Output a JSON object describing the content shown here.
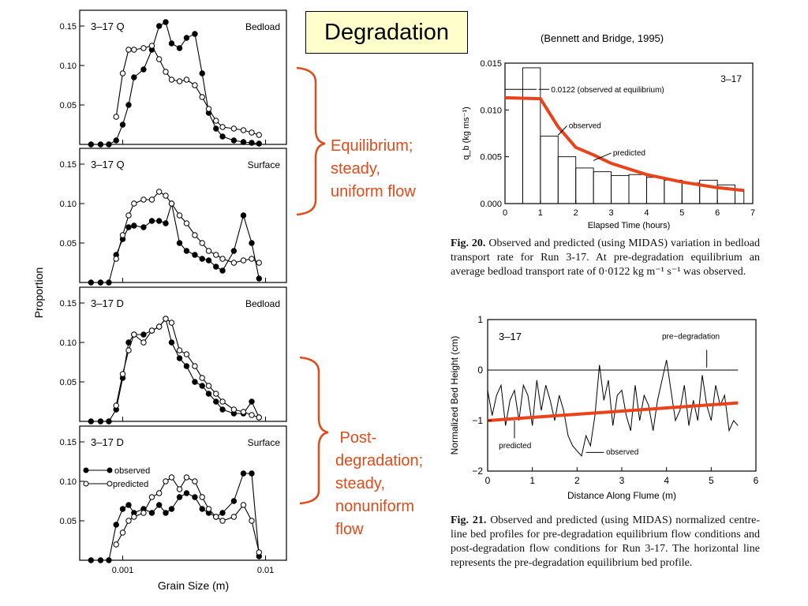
{
  "slide": {
    "title": "Degradation",
    "citation": "(Bennett and Bridge, 1995)",
    "annotation_equilibrium": "Equilibrium;\nsteady,\nuniform flow",
    "annotation_post": " Post-\ndegradation;\nsteady,\nnonuniform\nflow",
    "colors": {
      "annotation": "#e04b1a",
      "title_bg": "#ffffcc",
      "prediction_line": "#e8431b"
    }
  },
  "left_figure": {
    "ylabel": "Proportion",
    "xlabel": "Grain Size (m)",
    "x_ticks": [
      "0.001",
      "0.01"
    ],
    "y_ticks": [
      "0.15",
      "0.10",
      "0.05"
    ],
    "legend": {
      "observed": "observed",
      "predicted": "predicted"
    }
  },
  "fig20": {
    "caption_bold": "Fig. 20.",
    "caption_text": " Observed and predicted (using MIDAS) variation in bedload transport rate for Run 3-17. At pre-degradation equilibrium an average bedload transport rate of 0·0122 kg m⁻¹ s⁻¹ was observed."
  },
  "fig21": {
    "caption_bold": "Fig. 21.",
    "caption_text": " Observed and predicted (using MIDAS) normalized centre-line bed profiles for pre-degradation equilibrium flow conditions and post-degradation flow conditions for Run 3-17. The horizontal line represents the pre-degradation equilibrium bed profile."
  },
  "chart_data": [
    {
      "type": "line",
      "panel_label": "3–17 Q",
      "panel_kind": "Bedload",
      "x_scale": "log",
      "xlim": [
        0.0005,
        0.014
      ],
      "ylim": [
        0,
        0.17
      ],
      "series": [
        {
          "name": "observed",
          "marker": "filled",
          "x": [
            0.0006,
            0.0007,
            0.0008,
            0.0009,
            0.001,
            0.0011,
            0.0012,
            0.0014,
            0.0016,
            0.0018,
            0.002,
            0.0022,
            0.0025,
            0.0028,
            0.0032,
            0.0036,
            0.004,
            0.0045,
            0.005,
            0.006,
            0.007,
            0.008,
            0.009
          ],
          "y": [
            0,
            0,
            0,
            0.005,
            0.025,
            0.05,
            0.085,
            0.095,
            0.12,
            0.15,
            0.155,
            0.128,
            0.122,
            0.135,
            0.14,
            0.09,
            0.04,
            0.02,
            0.01,
            0.005,
            0.003,
            0.002,
            0.001
          ]
        },
        {
          "name": "predicted",
          "marker": "open",
          "x": [
            0.0009,
            0.001,
            0.0011,
            0.0012,
            0.0014,
            0.0016,
            0.0018,
            0.002,
            0.0022,
            0.0025,
            0.0028,
            0.0032,
            0.0036,
            0.004,
            0.0045,
            0.005,
            0.006,
            0.007,
            0.008,
            0.009
          ],
          "y": [
            0.035,
            0.09,
            0.12,
            0.12,
            0.122,
            0.125,
            0.108,
            0.092,
            0.082,
            0.08,
            0.082,
            0.075,
            0.06,
            0.045,
            0.03,
            0.022,
            0.02,
            0.018,
            0.015,
            0.012
          ]
        }
      ]
    },
    {
      "type": "line",
      "panel_label": "3–17 Q",
      "panel_kind": "Surface",
      "x_scale": "log",
      "xlim": [
        0.0005,
        0.014
      ],
      "ylim": [
        0,
        0.17
      ],
      "series": [
        {
          "name": "observed",
          "marker": "filled",
          "x": [
            0.0006,
            0.0007,
            0.0008,
            0.0009,
            0.001,
            0.0011,
            0.0012,
            0.0014,
            0.0016,
            0.0018,
            0.002,
            0.0022,
            0.0025,
            0.0028,
            0.0032,
            0.0036,
            0.004,
            0.0045,
            0.005,
            0.006,
            0.007,
            0.008,
            0.009
          ],
          "y": [
            0,
            0,
            0,
            0.035,
            0.055,
            0.07,
            0.072,
            0.07,
            0.078,
            0.078,
            0.075,
            0.1,
            0.05,
            0.04,
            0.035,
            0.03,
            0.028,
            0.02,
            0.015,
            0.04,
            0.085,
            0.05,
            0.005
          ]
        },
        {
          "name": "predicted",
          "marker": "open",
          "x": [
            0.0009,
            0.001,
            0.0011,
            0.0012,
            0.0014,
            0.0016,
            0.0018,
            0.002,
            0.0022,
            0.0025,
            0.0028,
            0.0032,
            0.0036,
            0.004,
            0.0045,
            0.005,
            0.006,
            0.007,
            0.008,
            0.009
          ],
          "y": [
            0.03,
            0.06,
            0.085,
            0.1,
            0.105,
            0.105,
            0.115,
            0.11,
            0.1,
            0.085,
            0.075,
            0.06,
            0.05,
            0.04,
            0.035,
            0.03,
            0.025,
            0.028,
            0.03,
            0.025
          ]
        }
      ]
    },
    {
      "type": "line",
      "panel_label": "3–17 D",
      "panel_kind": "Bedload",
      "x_scale": "log",
      "xlim": [
        0.0005,
        0.014
      ],
      "ylim": [
        0,
        0.17
      ],
      "series": [
        {
          "name": "observed",
          "marker": "filled",
          "x": [
            0.0006,
            0.0007,
            0.0008,
            0.0009,
            0.001,
            0.0011,
            0.0012,
            0.0014,
            0.0016,
            0.0018,
            0.002,
            0.0022,
            0.0025,
            0.0028,
            0.0032,
            0.0036,
            0.004,
            0.0045,
            0.005,
            0.006,
            0.007,
            0.008,
            0.009
          ],
          "y": [
            0,
            0,
            0,
            0.015,
            0.055,
            0.1,
            0.11,
            0.11,
            0.115,
            0.12,
            0.13,
            0.1,
            0.08,
            0.07,
            0.05,
            0.045,
            0.035,
            0.025,
            0.015,
            0.01,
            0.01,
            0.025,
            0.005
          ]
        },
        {
          "name": "predicted",
          "marker": "open",
          "x": [
            0.0009,
            0.001,
            0.0011,
            0.0012,
            0.0014,
            0.0016,
            0.0018,
            0.002,
            0.0022,
            0.0025,
            0.0028,
            0.0032,
            0.0036,
            0.004,
            0.0045,
            0.005,
            0.006,
            0.007,
            0.008,
            0.009
          ],
          "y": [
            0.02,
            0.06,
            0.09,
            0.11,
            0.1,
            0.115,
            0.12,
            0.13,
            0.125,
            0.09,
            0.085,
            0.07,
            0.055,
            0.045,
            0.035,
            0.025,
            0.015,
            0.012,
            0.008,
            0.005
          ]
        }
      ]
    },
    {
      "type": "line",
      "panel_label": "3–17 D",
      "panel_kind": "Surface",
      "x_scale": "log",
      "xlim": [
        0.0005,
        0.014
      ],
      "ylim": [
        0,
        0.17
      ],
      "series": [
        {
          "name": "observed",
          "marker": "filled",
          "x": [
            0.0006,
            0.0007,
            0.0008,
            0.0009,
            0.001,
            0.0011,
            0.0012,
            0.0014,
            0.0016,
            0.0018,
            0.002,
            0.0022,
            0.0025,
            0.0028,
            0.0032,
            0.0036,
            0.004,
            0.0045,
            0.005,
            0.006,
            0.007,
            0.008,
            0.009
          ],
          "y": [
            0,
            0,
            0,
            0.045,
            0.065,
            0.07,
            0.06,
            0.065,
            0.06,
            0.07,
            0.06,
            0.065,
            0.08,
            0.085,
            0.08,
            0.065,
            0.06,
            0.055,
            0.06,
            0.075,
            0.11,
            0.11,
            0.005
          ]
        },
        {
          "name": "predicted",
          "marker": "open",
          "x": [
            0.0009,
            0.001,
            0.0011,
            0.0012,
            0.0014,
            0.0016,
            0.0018,
            0.002,
            0.0022,
            0.0025,
            0.0028,
            0.0032,
            0.0036,
            0.004,
            0.0045,
            0.005,
            0.006,
            0.007,
            0.008,
            0.009
          ],
          "y": [
            0.02,
            0.035,
            0.05,
            0.055,
            0.06,
            0.08,
            0.085,
            0.1,
            0.105,
            0.09,
            0.105,
            0.1,
            0.08,
            0.065,
            0.055,
            0.05,
            0.055,
            0.07,
            0.05,
            0.01
          ]
        }
      ]
    },
    {
      "type": "bar",
      "figure": "Fig. 20",
      "panel_label": "3–17",
      "xlabel": "Elapsed Time (hours)",
      "ylabel": "q_b (kg ms⁻¹)",
      "xlim": [
        0,
        7
      ],
      "ylim": [
        0,
        0.015
      ],
      "x_ticks": [
        "0",
        "1",
        "2",
        "3",
        "4",
        "5",
        "6",
        "7"
      ],
      "y_ticks": [
        "0.000",
        "0.005",
        "0.010",
        "0.015"
      ],
      "bars": {
        "name": "observed",
        "bin_edges": [
          0,
          0.5,
          1,
          1.5,
          2,
          2.5,
          3,
          3.5,
          4,
          4.5,
          5,
          5.5,
          6,
          6.5,
          6.75
        ],
        "values": [
          0.0112,
          0.0145,
          0.0072,
          0.005,
          0.0038,
          0.0034,
          0.003,
          0.0031,
          0.0028,
          0.0025,
          0.0022,
          0.0025,
          0.002,
          0.0015
        ]
      },
      "predicted": {
        "name": "predicted",
        "x": [
          0,
          1,
          1.5,
          2,
          2.5,
          3,
          4,
          5,
          6,
          6.75
        ],
        "y": [
          0.0113,
          0.0112,
          0.0082,
          0.006,
          0.0052,
          0.0043,
          0.0031,
          0.0023,
          0.0017,
          0.0014
        ]
      },
      "equilibrium_value": 0.0122,
      "annotations": [
        "0.0122 (observed at equilibrium)",
        "observed",
        "predicted"
      ]
    },
    {
      "type": "line",
      "figure": "Fig. 21",
      "panel_label": "3–17",
      "xlabel": "Distance Along Flume (m)",
      "ylabel": "Normalized Bed Height (cm)",
      "xlim": [
        0,
        6
      ],
      "ylim": [
        -2,
        1
      ],
      "x_ticks": [
        "0",
        "1",
        "2",
        "3",
        "4",
        "5",
        "6"
      ],
      "y_ticks": [
        "1",
        "0",
        "−1",
        "−2"
      ],
      "series": [
        {
          "name": "pre-degradation",
          "x": [
            0,
            5.6
          ],
          "y": [
            0,
            0
          ]
        },
        {
          "name": "observed",
          "x": [
            0,
            0.1,
            0.2,
            0.3,
            0.4,
            0.5,
            0.6,
            0.7,
            0.8,
            0.9,
            1.0,
            1.1,
            1.2,
            1.3,
            1.4,
            1.5,
            1.6,
            1.7,
            1.8,
            1.9,
            2.0,
            2.1,
            2.2,
            2.3,
            2.4,
            2.5,
            2.6,
            2.7,
            2.8,
            2.9,
            3.0,
            3.1,
            3.2,
            3.3,
            3.4,
            3.5,
            3.6,
            3.7,
            3.8,
            3.9,
            4.0,
            4.1,
            4.2,
            4.3,
            4.4,
            4.5,
            4.6,
            4.7,
            4.8,
            4.9,
            5.0,
            5.1,
            5.2,
            5.3,
            5.4,
            5.5,
            5.6
          ],
          "y": [
            -0.4,
            -0.9,
            -0.5,
            -0.3,
            -1.1,
            -0.6,
            -0.4,
            -1.0,
            -0.3,
            -0.5,
            -1.1,
            -0.2,
            -0.8,
            -0.3,
            -0.6,
            -1.0,
            -0.5,
            -0.8,
            -1.3,
            -1.5,
            -1.6,
            -1.7,
            -1.3,
            -1.5,
            -0.9,
            0.1,
            -0.6,
            -0.2,
            -1.1,
            -0.5,
            -0.4,
            -0.9,
            -1.2,
            -0.3,
            -1.0,
            -0.5,
            -0.7,
            -1.2,
            -0.6,
            -0.2,
            0.2,
            -0.4,
            -1.0,
            -0.8,
            -0.3,
            -1.1,
            -0.6,
            -1.0,
            -0.1,
            -0.7,
            -1.0,
            -0.3,
            -0.7,
            -0.5,
            -1.2,
            -1.0,
            -1.1
          ]
        },
        {
          "name": "predicted",
          "x": [
            0,
            5.6
          ],
          "y": [
            -1.0,
            -0.65
          ]
        }
      ],
      "annotations": [
        "pre−degradation",
        "predicted",
        "observed"
      ]
    }
  ]
}
